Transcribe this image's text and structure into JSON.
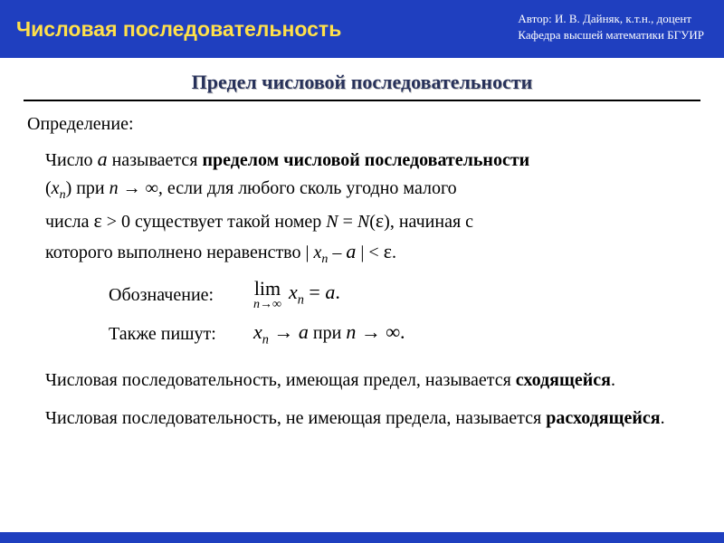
{
  "header": {
    "title": "Числовая последовательность",
    "author_line1": "Автор:  И. В. Дайняк,  к.т.н.,  доцент",
    "author_line2": "Кафедра высшей математики БГУИР",
    "bg_color": "#1f3fbf",
    "title_color": "#ffe04a"
  },
  "section_title": "Предел числовой последовательности",
  "definition": {
    "label": "Определение:",
    "seg_number": "Число  ",
    "seg_a": "a",
    "seg_called": "  называется ",
    "seg_bold_limit": "пределом числовой последовательности",
    "seg_xn_open": "(",
    "seg_xn_var": "x",
    "seg_xn_sub": "n",
    "seg_xn_close": ")  при   ",
    "seg_ntoinf": "n → ∞,",
    "seg_if": "   если для любого сколь угодно малого",
    "seg_number2": "числа  ",
    "seg_eps": "ε",
    "seg_gt0": " > 0",
    "seg_exists": "  существует такой номер  ",
    "seg_N": "N",
    "seg_eq": " = ",
    "seg_N2": "N",
    "seg_paren_open": "(",
    "seg_eps2": "ε",
    "seg_paren_close": ")",
    "seg_start": ", начиная с",
    "seg_which": "которого выполнено неравенство  | ",
    "seg_xn2_var": "x",
    "seg_xn2_sub": "n",
    "seg_minus": " – ",
    "seg_a2": "a",
    "seg_lt": " | < ",
    "seg_eps3": "ε",
    "seg_period": "."
  },
  "notation": {
    "label1": "Обозначение:",
    "lim_word": "lim",
    "lim_sub": "n→∞",
    "lim_expr_var": "x",
    "lim_expr_sub": "n",
    "lim_expr_eq": " = ",
    "lim_expr_a": "a",
    "lim_expr_period": ".",
    "label2": "Также пишут:",
    "also_var": "x",
    "also_sub": "n",
    "also_arrow": " → ",
    "also_a": "a",
    "also_at": "   при   ",
    "also_ninf": "n → ∞",
    "also_period": "."
  },
  "para1": {
    "pre": "Числовая последовательность, имеющая предел, называется ",
    "bold": "сходящейся",
    "post": "."
  },
  "para2": {
    "pre": "Числовая последовательность, не имеющая предела, называется ",
    "bold": "расходящейся",
    "post": "."
  }
}
